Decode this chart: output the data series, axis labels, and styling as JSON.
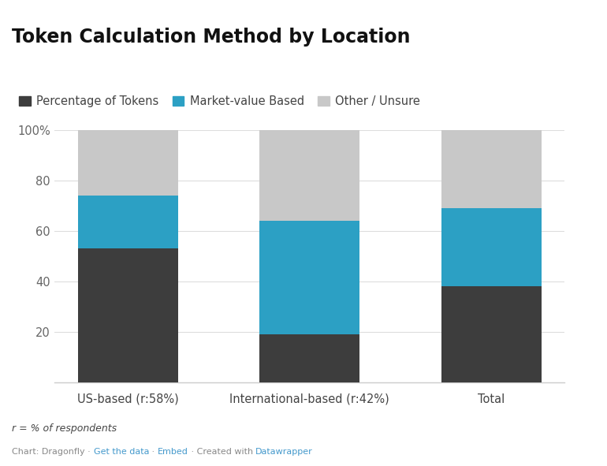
{
  "title": "Token Calculation Method by Location",
  "categories": [
    "US-based (r:58%)",
    "International-based (r:42%)",
    "Total"
  ],
  "series": {
    "Percentage of Tokens": [
      53,
      19,
      38
    ],
    "Market-value Based": [
      21,
      45,
      31
    ],
    "Other / Unsure": [
      26,
      36,
      31
    ]
  },
  "colors": {
    "Percentage of Tokens": "#3d3d3d",
    "Market-value Based": "#2ca0c4",
    "Other / Unsure": "#c8c8c8"
  },
  "legend_order": [
    "Percentage of Tokens",
    "Market-value Based",
    "Other / Unsure"
  ],
  "ylim": [
    0,
    100
  ],
  "yticks": [
    0,
    20,
    40,
    60,
    80,
    100
  ],
  "ytick_labels": [
    "",
    "20",
    "40",
    "60",
    "80",
    "100%"
  ],
  "footnote": "r = % of respondents",
  "footer_parts": [
    [
      "Chart: Dragonfly · ",
      "#888888"
    ],
    [
      "Get the data",
      "#4499cc"
    ],
    [
      " · ",
      "#888888"
    ],
    [
      "Embed",
      "#4499cc"
    ],
    [
      " · Created with ",
      "#888888"
    ],
    [
      "Datawrapper",
      "#4499cc"
    ]
  ],
  "background_color": "#ffffff",
  "title_fontsize": 17,
  "legend_fontsize": 10.5,
  "tick_fontsize": 10.5,
  "bar_width": 0.55
}
